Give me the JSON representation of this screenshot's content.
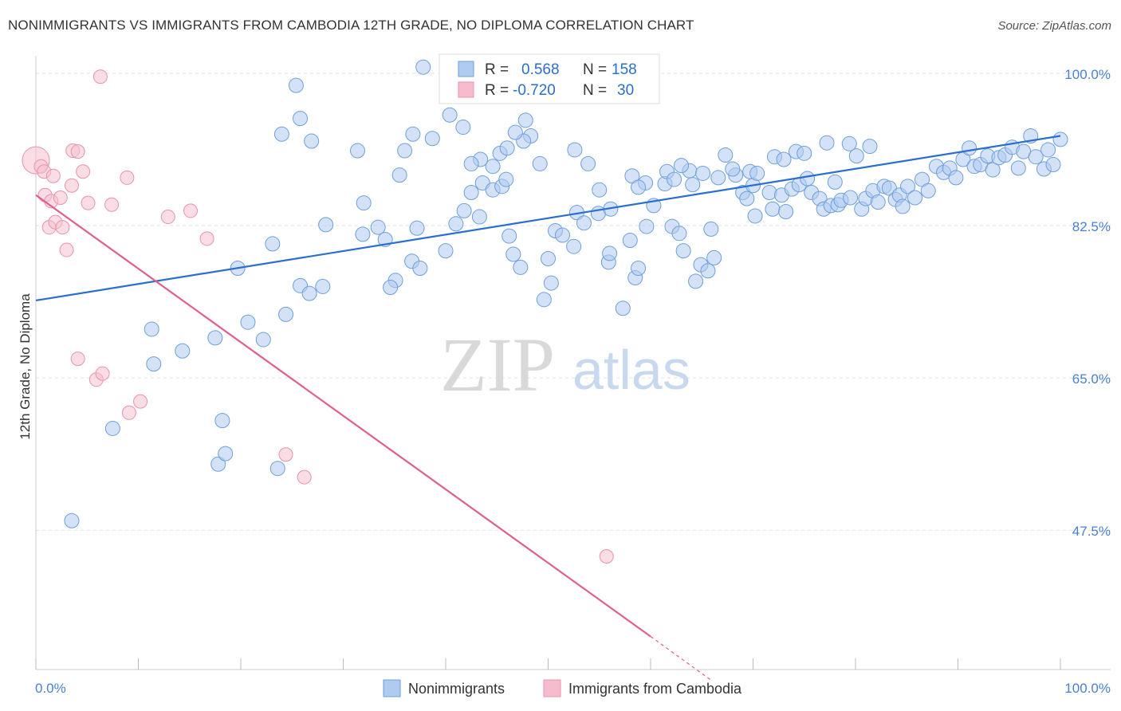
{
  "header": {
    "title": "NONIMMIGRANTS VS IMMIGRANTS FROM CAMBODIA 12TH GRADE, NO DIPLOMA CORRELATION CHART",
    "source": "Source: ZipAtlas.com"
  },
  "watermark": {
    "zip": "ZIP",
    "atlas": "atlas"
  },
  "legend": {
    "r_label": "R =",
    "n_label": "N =",
    "rows": [
      {
        "r": "0.568",
        "n": "158",
        "color": "#aecbf0"
      },
      {
        "r": "-0.720",
        "n": "30",
        "color": "#f6bccd"
      }
    ]
  },
  "colors": {
    "blue_fill": "#aecbf0",
    "blue_stroke": "#6f9fdc",
    "blue_line": "#2a6fcf",
    "pink_fill": "#f6c1d0",
    "pink_stroke": "#e993ad",
    "pink_line": "#e0608c",
    "tick_label": "#4a7fd4"
  },
  "chart_data": {
    "type": "scatter",
    "xlabel": "",
    "ylabel": "12th Grade, No Diploma",
    "xlim": [
      0,
      100
    ],
    "ylim": [
      31.5,
      102
    ],
    "x_tick_labels": [
      "0.0%",
      "100.0%"
    ],
    "y_ticks": [
      47.5,
      65.0,
      82.5,
      100.0
    ],
    "y_tick_labels": [
      "47.5%",
      "65.0%",
      "82.5%",
      "100.0%"
    ],
    "grid": true,
    "legend_placement": "top-center",
    "series": [
      {
        "name": "Nonimmigrants",
        "color": "#aecbf0",
        "trend": {
          "x": [
            0,
            100
          ],
          "y": [
            73.9,
            92.8
          ]
        },
        "points": [
          [
            3.5,
            48.6
          ],
          [
            7.5,
            59.2
          ],
          [
            11.5,
            66.6
          ],
          [
            11.3,
            70.6
          ],
          [
            14.3,
            68.1
          ],
          [
            17.8,
            55.1
          ],
          [
            18.2,
            60.1
          ],
          [
            18.5,
            56.3
          ],
          [
            17.5,
            69.6
          ],
          [
            19.7,
            77.6
          ],
          [
            23.6,
            54.6
          ],
          [
            20.7,
            71.4
          ],
          [
            22.2,
            69.4
          ],
          [
            23.1,
            80.4
          ],
          [
            24.4,
            72.3
          ],
          [
            25.8,
            75.6
          ],
          [
            26.7,
            74.7
          ],
          [
            28.0,
            75.5
          ],
          [
            28.3,
            82.6
          ],
          [
            32.0,
            85.1
          ],
          [
            31.4,
            91.1
          ],
          [
            31.9,
            81.5
          ],
          [
            33.4,
            82.3
          ],
          [
            34.1,
            80.9
          ],
          [
            35.5,
            88.3
          ],
          [
            36.0,
            91.1
          ],
          [
            35.1,
            76.2
          ],
          [
            34.6,
            75.4
          ],
          [
            36.7,
            78.4
          ],
          [
            37.5,
            77.6
          ],
          [
            40.0,
            79.6
          ],
          [
            41.0,
            82.7
          ],
          [
            42.5,
            86.3
          ],
          [
            43.3,
            83.5
          ],
          [
            43.6,
            87.4
          ],
          [
            44.6,
            86.6
          ],
          [
            45.5,
            87.0
          ],
          [
            46.2,
            81.3
          ],
          [
            46.6,
            79.2
          ],
          [
            47.3,
            77.7
          ],
          [
            49.6,
            74.0
          ],
          [
            50.0,
            78.7
          ],
          [
            50.3,
            75.9
          ],
          [
            50.7,
            81.9
          ],
          [
            51.4,
            81.4
          ],
          [
            52.5,
            80.1
          ],
          [
            52.8,
            84.0
          ],
          [
            53.5,
            82.8
          ],
          [
            54.9,
            83.9
          ],
          [
            55.9,
            78.3
          ],
          [
            56.0,
            79.3
          ],
          [
            57.3,
            73.0
          ],
          [
            58.5,
            76.5
          ],
          [
            58.0,
            80.8
          ],
          [
            58.8,
            77.6
          ],
          [
            59.6,
            82.4
          ],
          [
            60.3,
            84.8
          ],
          [
            61.4,
            87.3
          ],
          [
            62.1,
            82.4
          ],
          [
            62.8,
            81.6
          ],
          [
            63.2,
            79.6
          ],
          [
            64.4,
            76.1
          ],
          [
            64.9,
            78.0
          ],
          [
            65.6,
            77.3
          ],
          [
            66.2,
            78.8
          ],
          [
            65.9,
            82.1
          ],
          [
            68.3,
            88.3
          ],
          [
            69.0,
            86.3
          ],
          [
            69.4,
            85.6
          ],
          [
            70.0,
            87.1
          ],
          [
            70.2,
            83.6
          ],
          [
            71.6,
            86.3
          ],
          [
            71.9,
            84.4
          ],
          [
            72.8,
            86.0
          ],
          [
            73.2,
            84.1
          ],
          [
            73.8,
            86.7
          ],
          [
            74.5,
            87.2
          ],
          [
            75.3,
            87.9
          ],
          [
            75.7,
            86.3
          ],
          [
            76.5,
            85.6
          ],
          [
            76.9,
            84.4
          ],
          [
            77.6,
            84.8
          ],
          [
            78.0,
            87.5
          ],
          [
            78.3,
            84.9
          ],
          [
            78.6,
            85.4
          ],
          [
            79.5,
            85.7
          ],
          [
            80.6,
            84.4
          ],
          [
            81.0,
            85.6
          ],
          [
            81.7,
            86.5
          ],
          [
            82.2,
            85.2
          ],
          [
            82.8,
            87.0
          ],
          [
            83.3,
            86.8
          ],
          [
            83.9,
            85.5
          ],
          [
            84.3,
            86.0
          ],
          [
            84.6,
            84.7
          ],
          [
            85.1,
            87.0
          ],
          [
            85.8,
            85.7
          ],
          [
            86.5,
            87.8
          ],
          [
            87.1,
            86.5
          ],
          [
            87.9,
            89.3
          ],
          [
            88.6,
            88.6
          ],
          [
            89.2,
            89.1
          ],
          [
            89.8,
            88.0
          ],
          [
            90.5,
            90.1
          ],
          [
            91.1,
            91.4
          ],
          [
            91.6,
            89.3
          ],
          [
            92.2,
            89.5
          ],
          [
            92.9,
            90.5
          ],
          [
            93.4,
            88.9
          ],
          [
            94.0,
            90.3
          ],
          [
            94.6,
            90.6
          ],
          [
            95.3,
            91.5
          ],
          [
            95.9,
            89.1
          ],
          [
            96.4,
            91.0
          ],
          [
            97.1,
            92.8
          ],
          [
            97.6,
            90.4
          ],
          [
            98.4,
            89.0
          ],
          [
            98.8,
            91.2
          ],
          [
            99.3,
            89.5
          ],
          [
            100.0,
            92.4
          ],
          [
            36.8,
            93.0
          ],
          [
            41.7,
            93.8
          ],
          [
            40.4,
            95.2
          ],
          [
            47.8,
            94.6
          ],
          [
            48.3,
            92.8
          ],
          [
            43.4,
            90.1
          ],
          [
            44.6,
            89.3
          ],
          [
            37.8,
            100.7
          ],
          [
            25.4,
            98.6
          ],
          [
            25.8,
            94.8
          ],
          [
            26.9,
            92.2
          ],
          [
            38.7,
            92.5
          ],
          [
            24.0,
            93.0
          ],
          [
            37.2,
            82.2
          ],
          [
            41.8,
            84.2
          ],
          [
            55.0,
            86.6
          ],
          [
            42.5,
            89.6
          ],
          [
            63.8,
            88.8
          ],
          [
            65.1,
            88.5
          ],
          [
            66.6,
            88.0
          ],
          [
            52.6,
            91.2
          ],
          [
            53.9,
            89.6
          ],
          [
            47.6,
            92.2
          ],
          [
            49.2,
            89.6
          ],
          [
            45.9,
            87.8
          ],
          [
            46.8,
            93.2
          ],
          [
            45.3,
            90.8
          ],
          [
            46.0,
            91.4
          ],
          [
            56.1,
            84.4
          ],
          [
            58.2,
            88.2
          ],
          [
            59.5,
            87.4
          ],
          [
            58.8,
            86.9
          ],
          [
            61.6,
            88.7
          ],
          [
            62.3,
            87.8
          ],
          [
            63.0,
            89.4
          ],
          [
            64.1,
            87.2
          ],
          [
            67.3,
            90.6
          ],
          [
            68.0,
            89.0
          ],
          [
            69.7,
            88.7
          ],
          [
            70.4,
            88.5
          ],
          [
            72.1,
            90.4
          ],
          [
            73.0,
            90.1
          ],
          [
            74.2,
            91.0
          ],
          [
            75.0,
            90.8
          ],
          [
            77.2,
            92.0
          ],
          [
            79.4,
            91.9
          ],
          [
            80.1,
            90.5
          ],
          [
            81.4,
            91.6
          ]
        ]
      },
      {
        "name": "Immigrants from Cambodia",
        "color": "#f6bccd",
        "trend": {
          "x": [
            0,
            60
          ],
          "y": [
            86.0,
            35.3
          ]
        },
        "trend_dashed": {
          "x": [
            60,
            66
          ],
          "y": [
            35.3,
            30.2
          ]
        },
        "points": [
          [
            0.0,
            90.0
          ],
          [
            0.5,
            89.3
          ],
          [
            0.8,
            88.7
          ],
          [
            0.9,
            86.0
          ],
          [
            1.3,
            82.3
          ],
          [
            1.5,
            85.3
          ],
          [
            1.7,
            88.2
          ],
          [
            1.9,
            82.9
          ],
          [
            2.4,
            85.7
          ],
          [
            2.6,
            82.3
          ],
          [
            3.0,
            79.7
          ],
          [
            3.5,
            87.1
          ],
          [
            3.6,
            91.1
          ],
          [
            4.1,
            91.0
          ],
          [
            4.1,
            67.2
          ],
          [
            4.6,
            88.7
          ],
          [
            5.1,
            85.1
          ],
          [
            5.9,
            64.8
          ],
          [
            6.5,
            65.5
          ],
          [
            7.4,
            84.9
          ],
          [
            6.3,
            99.6
          ],
          [
            8.9,
            88.0
          ],
          [
            9.1,
            61.0
          ],
          [
            10.2,
            62.3
          ],
          [
            12.9,
            83.5
          ],
          [
            15.1,
            84.2
          ],
          [
            16.7,
            81.0
          ],
          [
            24.4,
            56.2
          ],
          [
            26.2,
            53.6
          ],
          [
            55.7,
            44.5
          ]
        ]
      }
    ]
  },
  "bottom_legend": [
    {
      "label": "Nonimmigrants",
      "color": "#aecbf0"
    },
    {
      "label": "Immigrants from Cambodia",
      "color": "#f6bccd"
    }
  ]
}
